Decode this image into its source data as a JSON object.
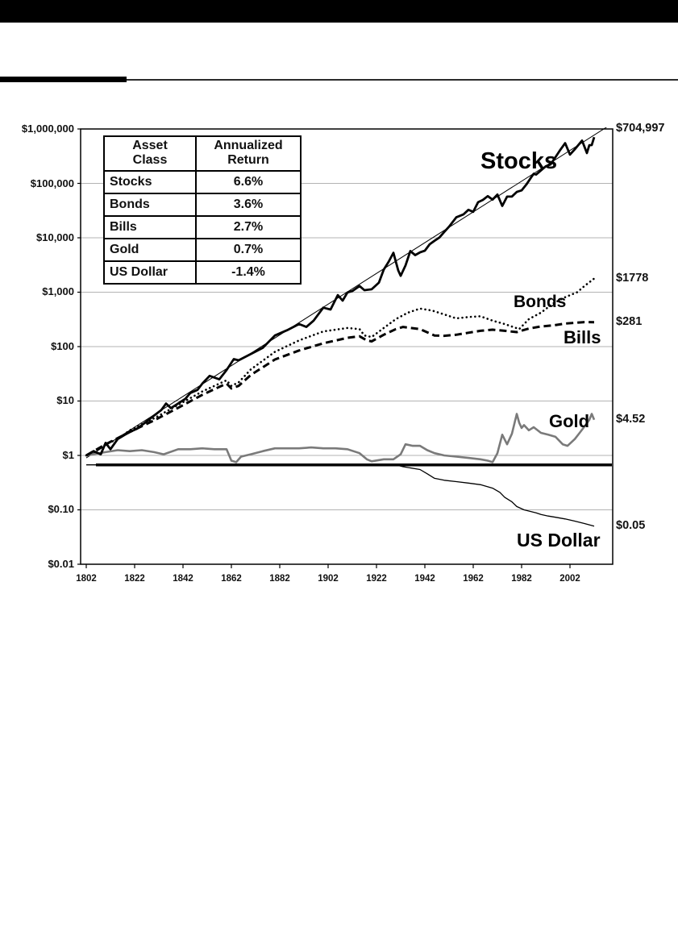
{
  "page": {
    "background": "#ffffff",
    "top_bar_color": "#000000"
  },
  "chart": {
    "y_axis_labels": [
      "$1,000,000",
      "$100,000",
      "$10,000",
      "$1,000",
      "$100",
      "$10",
      "$1",
      "$0.10",
      "$0.01"
    ],
    "x_axis_labels": [
      "1802",
      "1822",
      "1842",
      "1862",
      "1882",
      "1902",
      "1922",
      "1942",
      "1962",
      "1982",
      "2002"
    ],
    "series_labels": {
      "stocks": "Stocks",
      "bonds": "Bonds",
      "bills": "Bills",
      "gold": "Gold",
      "us_dollar": "US Dollar"
    },
    "end_values": {
      "stocks": "$704,997",
      "bonds": "$1778",
      "bills": "$281",
      "gold": "$4.52",
      "us_dollar": "$0.05"
    },
    "inset_table": {
      "col1_header_line1": "Asset",
      "col1_header_line2": "Class",
      "col2_header_line1": "Annualized",
      "col2_header_line2": "Return",
      "rows": [
        {
          "asset": "Stocks",
          "return": "6.6%"
        },
        {
          "asset": "Bonds",
          "return": "3.6%"
        },
        {
          "asset": "Bills",
          "return": "2.7%"
        },
        {
          "asset": "Gold",
          "return": "0.7%"
        },
        {
          "asset": "US Dollar",
          "return": "-1.4%"
        }
      ]
    }
  },
  "chart_data": {
    "type": "line",
    "title": "",
    "xlabel": "",
    "ylabel": "",
    "y_scale": "log",
    "y_range": [
      0.01,
      1000000
    ],
    "x_range": [
      1802,
      2012
    ],
    "grid": "horizontal-decade-lines",
    "y_ticks": [
      1000000,
      100000,
      10000,
      1000,
      100,
      10,
      1,
      0.1,
      0.01
    ],
    "x_ticks": [
      1802,
      1822,
      1842,
      1862,
      1882,
      1902,
      1922,
      1942,
      1962,
      1982,
      2002
    ],
    "trend_line": {
      "name": "Stocks 6.6% trend line",
      "points": [
        [
          1802,
          0.9
        ],
        [
          2020,
          1300000
        ]
      ]
    },
    "reference_line": {
      "name": "dollar baseline",
      "value": 0.67
    },
    "series": [
      {
        "id": "gold",
        "name": "Gold",
        "annualized_return": "0.7%",
        "end_value": 4.52,
        "color": "#7a7a7a",
        "stroke_width": 2.6,
        "dash": "",
        "points": [
          [
            1802,
            1.0
          ],
          [
            1810,
            1.15
          ],
          [
            1815,
            1.25
          ],
          [
            1820,
            1.2
          ],
          [
            1825,
            1.25
          ],
          [
            1830,
            1.15
          ],
          [
            1834,
            1.05
          ],
          [
            1840,
            1.3
          ],
          [
            1845,
            1.3
          ],
          [
            1850,
            1.35
          ],
          [
            1855,
            1.3
          ],
          [
            1860,
            1.3
          ],
          [
            1862,
            0.8
          ],
          [
            1864,
            0.75
          ],
          [
            1866,
            0.95
          ],
          [
            1870,
            1.05
          ],
          [
            1875,
            1.2
          ],
          [
            1880,
            1.35
          ],
          [
            1885,
            1.35
          ],
          [
            1890,
            1.35
          ],
          [
            1895,
            1.4
          ],
          [
            1900,
            1.35
          ],
          [
            1905,
            1.35
          ],
          [
            1910,
            1.3
          ],
          [
            1915,
            1.1
          ],
          [
            1918,
            0.85
          ],
          [
            1920,
            0.78
          ],
          [
            1925,
            0.85
          ],
          [
            1929,
            0.85
          ],
          [
            1932,
            1.05
          ],
          [
            1934,
            1.6
          ],
          [
            1937,
            1.5
          ],
          [
            1940,
            1.5
          ],
          [
            1943,
            1.25
          ],
          [
            1946,
            1.1
          ],
          [
            1950,
            1.0
          ],
          [
            1955,
            0.95
          ],
          [
            1960,
            0.9
          ],
          [
            1965,
            0.85
          ],
          [
            1968,
            0.8
          ],
          [
            1970,
            0.75
          ],
          [
            1972,
            1.1
          ],
          [
            1974,
            2.4
          ],
          [
            1976,
            1.6
          ],
          [
            1978,
            2.5
          ],
          [
            1980,
            5.8
          ],
          [
            1981,
            4.0
          ],
          [
            1982,
            3.2
          ],
          [
            1983,
            3.6
          ],
          [
            1985,
            2.9
          ],
          [
            1987,
            3.3
          ],
          [
            1990,
            2.6
          ],
          [
            1993,
            2.4
          ],
          [
            1996,
            2.2
          ],
          [
            1999,
            1.6
          ],
          [
            2001,
            1.5
          ],
          [
            2004,
            2.0
          ],
          [
            2006,
            2.6
          ],
          [
            2008,
            3.4
          ],
          [
            2010,
            4.5
          ],
          [
            2011,
            5.8
          ],
          [
            2012,
            4.52
          ]
        ]
      },
      {
        "id": "bills",
        "name": "Bills",
        "annualized_return": "2.7%",
        "end_value": 281,
        "color": "#000000",
        "stroke_width": 3,
        "dash": "9 5",
        "points": [
          [
            1802,
            1.0
          ],
          [
            1810,
            1.6
          ],
          [
            1820,
            2.7
          ],
          [
            1830,
            4.4
          ],
          [
            1840,
            7.5
          ],
          [
            1850,
            13
          ],
          [
            1860,
            21
          ],
          [
            1862,
            17
          ],
          [
            1865,
            19
          ],
          [
            1870,
            30
          ],
          [
            1880,
            58
          ],
          [
            1890,
            85
          ],
          [
            1900,
            115
          ],
          [
            1910,
            145
          ],
          [
            1915,
            155
          ],
          [
            1918,
            130
          ],
          [
            1920,
            125
          ],
          [
            1925,
            165
          ],
          [
            1930,
            210
          ],
          [
            1933,
            230
          ],
          [
            1940,
            210
          ],
          [
            1946,
            160
          ],
          [
            1950,
            158
          ],
          [
            1955,
            165
          ],
          [
            1960,
            180
          ],
          [
            1965,
            195
          ],
          [
            1970,
            205
          ],
          [
            1975,
            195
          ],
          [
            1980,
            185
          ],
          [
            1985,
            215
          ],
          [
            1990,
            235
          ],
          [
            1995,
            245
          ],
          [
            2000,
            265
          ],
          [
            2005,
            275
          ],
          [
            2008,
            282
          ],
          [
            2012,
            281
          ]
        ]
      },
      {
        "id": "bonds",
        "name": "Bonds",
        "annualized_return": "3.6%",
        "end_value": 1778,
        "color": "#000000",
        "stroke_width": 2.6,
        "dash": "0.1 5.2",
        "linecap": "round",
        "points": [
          [
            1802,
            1.0
          ],
          [
            1810,
            1.6
          ],
          [
            1815,
            2.0
          ],
          [
            1820,
            2.9
          ],
          [
            1830,
            4.8
          ],
          [
            1840,
            8.5
          ],
          [
            1850,
            15
          ],
          [
            1860,
            24
          ],
          [
            1862,
            19
          ],
          [
            1865,
            22
          ],
          [
            1870,
            38
          ],
          [
            1880,
            80
          ],
          [
            1890,
            130
          ],
          [
            1900,
            190
          ],
          [
            1910,
            220
          ],
          [
            1915,
            210
          ],
          [
            1917,
            160
          ],
          [
            1920,
            150
          ],
          [
            1925,
            220
          ],
          [
            1930,
            320
          ],
          [
            1935,
            420
          ],
          [
            1940,
            500
          ],
          [
            1945,
            460
          ],
          [
            1950,
            390
          ],
          [
            1955,
            330
          ],
          [
            1960,
            350
          ],
          [
            1965,
            360
          ],
          [
            1970,
            300
          ],
          [
            1975,
            260
          ],
          [
            1981,
            210
          ],
          [
            1985,
            320
          ],
          [
            1990,
            420
          ],
          [
            1995,
            620
          ],
          [
            2000,
            810
          ],
          [
            2005,
            1000
          ],
          [
            2008,
            1300
          ],
          [
            2012,
            1778
          ]
        ]
      },
      {
        "id": "us_dollar",
        "name": "US Dollar",
        "annualized_return": "-1.4%",
        "end_value": 0.05,
        "color": "#000000",
        "stroke_width": 1.3,
        "dash": "",
        "points": [
          [
            1802,
            0.67
          ],
          [
            1930,
            0.67
          ],
          [
            1933,
            0.62
          ],
          [
            1940,
            0.55
          ],
          [
            1943,
            0.46
          ],
          [
            1946,
            0.38
          ],
          [
            1950,
            0.35
          ],
          [
            1955,
            0.33
          ],
          [
            1960,
            0.31
          ],
          [
            1965,
            0.29
          ],
          [
            1970,
            0.25
          ],
          [
            1973,
            0.21
          ],
          [
            1975,
            0.17
          ],
          [
            1978,
            0.14
          ],
          [
            1980,
            0.115
          ],
          [
            1983,
            0.1
          ],
          [
            1985,
            0.095
          ],
          [
            1988,
            0.088
          ],
          [
            1990,
            0.082
          ],
          [
            1993,
            0.077
          ],
          [
            1996,
            0.073
          ],
          [
            2000,
            0.068
          ],
          [
            2004,
            0.062
          ],
          [
            2008,
            0.056
          ],
          [
            2012,
            0.05
          ]
        ]
      },
      {
        "id": "stocks",
        "name": "Stocks",
        "annualized_return": "6.6%",
        "end_value": 704997,
        "color": "#000000",
        "stroke_width": 2.8,
        "dash": "",
        "points": [
          [
            1802,
            1.0
          ],
          [
            1805,
            1.2
          ],
          [
            1808,
            1.05
          ],
          [
            1810,
            1.7
          ],
          [
            1812,
            1.3
          ],
          [
            1815,
            2.0
          ],
          [
            1818,
            2.4
          ],
          [
            1820,
            2.7
          ],
          [
            1823,
            3.1
          ],
          [
            1826,
            3.9
          ],
          [
            1830,
            5.4
          ],
          [
            1833,
            6.8
          ],
          [
            1835,
            9.0
          ],
          [
            1837,
            7.4
          ],
          [
            1840,
            9.0
          ],
          [
            1843,
            11
          ],
          [
            1845,
            14
          ],
          [
            1848,
            16
          ],
          [
            1850,
            21
          ],
          [
            1853,
            29
          ],
          [
            1857,
            25
          ],
          [
            1860,
            37
          ],
          [
            1863,
            59
          ],
          [
            1865,
            56
          ],
          [
            1870,
            73
          ],
          [
            1875,
            95
          ],
          [
            1880,
            160
          ],
          [
            1885,
            200
          ],
          [
            1890,
            260
          ],
          [
            1893,
            230
          ],
          [
            1896,
            300
          ],
          [
            1900,
            520
          ],
          [
            1903,
            480
          ],
          [
            1906,
            885
          ],
          [
            1908,
            700
          ],
          [
            1910,
            990
          ],
          [
            1912,
            1050
          ],
          [
            1915,
            1300
          ],
          [
            1917,
            1090
          ],
          [
            1920,
            1130
          ],
          [
            1923,
            1500
          ],
          [
            1925,
            2600
          ],
          [
            1927,
            3600
          ],
          [
            1929,
            5300
          ],
          [
            1931,
            2500
          ],
          [
            1932,
            2000
          ],
          [
            1934,
            3100
          ],
          [
            1936,
            5700
          ],
          [
            1938,
            4800
          ],
          [
            1940,
            5400
          ],
          [
            1942,
            5800
          ],
          [
            1944,
            7600
          ],
          [
            1946,
            8800
          ],
          [
            1948,
            10100
          ],
          [
            1950,
            12800
          ],
          [
            1952,
            16000
          ],
          [
            1955,
            23800
          ],
          [
            1958,
            27000
          ],
          [
            1960,
            32700
          ],
          [
            1962,
            30000
          ],
          [
            1964,
            45000
          ],
          [
            1966,
            49700
          ],
          [
            1968,
            58400
          ],
          [
            1970,
            50400
          ],
          [
            1972,
            62500
          ],
          [
            1974,
            38500
          ],
          [
            1976,
            57200
          ],
          [
            1978,
            57400
          ],
          [
            1980,
            69600
          ],
          [
            1982,
            74200
          ],
          [
            1984,
            95500
          ],
          [
            1986,
            130000
          ],
          [
            1987,
            150000
          ],
          [
            1988,
            145000
          ],
          [
            1990,
            173000
          ],
          [
            1992,
            206000
          ],
          [
            1994,
            224000
          ],
          [
            1996,
            303000
          ],
          [
            1998,
            413000
          ],
          [
            2000,
            548000
          ],
          [
            2002,
            338000
          ],
          [
            2004,
            424000
          ],
          [
            2007,
            611000
          ],
          [
            2009,
            361000
          ],
          [
            2010,
            503000
          ],
          [
            2011,
            505000
          ],
          [
            2012,
            704997
          ]
        ]
      }
    ]
  }
}
